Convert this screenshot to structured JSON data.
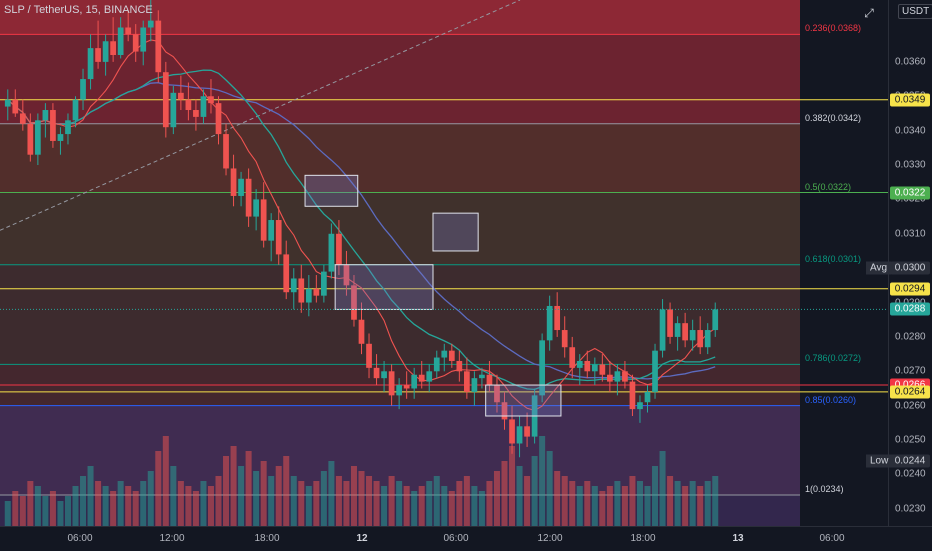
{
  "chart_data": {
    "type": "candlestick",
    "symbol_label": "SLP / TetherUS, 15, BINANCE",
    "currency": "USDT",
    "y_range": [
      0.0225,
      0.0378
    ],
    "price_ticks": [
      "0.0360",
      "0.0350",
      "0.0340",
      "0.0330",
      "0.0320",
      "0.0310",
      "0.0300",
      "0.0290",
      "0.0280",
      "0.0270",
      "0.0260",
      "0.0250",
      "0.0240",
      "0.0230"
    ],
    "time_ticks": [
      "06:00",
      "12:00",
      "18:00",
      "12",
      "06:00",
      "12:00",
      "18:00",
      "13",
      "06:00"
    ],
    "time_ticks_bold": [
      "12",
      "13"
    ],
    "fib_levels": [
      {
        "label": "0.236(0.0368)",
        "value": 0.0368,
        "color": "#f23645"
      },
      {
        "label": "0.382(0.0342)",
        "value": 0.0342,
        "color": "#9598a1"
      },
      {
        "label": "0.5(0.0322)",
        "value": 0.0322,
        "color": "#4caf50"
      },
      {
        "label": "0.618(0.0301)",
        "value": 0.0301,
        "color": "#089981"
      },
      {
        "label": "0.786(0.0272)",
        "value": 0.0272,
        "color": "#089981"
      },
      {
        "label": "0.85(0.0260)",
        "value": 0.026,
        "color": "#2962ff"
      },
      {
        "label": "1(0.0234)",
        "value": 0.0234,
        "color": "#9598a1"
      }
    ],
    "horizontal_lines": [
      {
        "value": 0.0349,
        "color": "#f7e34a",
        "tag": "0.0349"
      },
      {
        "value": 0.0322,
        "color": "#4caf50",
        "tag": "0.0322"
      },
      {
        "value": 0.0294,
        "color": "#f7e34a",
        "tag": "0.0294"
      },
      {
        "value": 0.0266,
        "color": "#f23645",
        "tag": "0.0266"
      },
      {
        "value": 0.0264,
        "color": "#f7e34a",
        "tag": "0.0264"
      }
    ],
    "last_price": {
      "value": 0.0288,
      "tag": "0.0288",
      "color": "#26a69a"
    },
    "avg": {
      "label": "Avg",
      "value": "0.0300"
    },
    "low": {
      "label": "Low",
      "value": "0.0244"
    },
    "candles_ohlc": [
      [
        0.0347,
        0.0352,
        0.0343,
        0.0349
      ],
      [
        0.0349,
        0.0352,
        0.0344,
        0.0345
      ],
      [
        0.0345,
        0.0349,
        0.034,
        0.0342
      ],
      [
        0.0342,
        0.0345,
        0.0331,
        0.0333
      ],
      [
        0.0333,
        0.0345,
        0.033,
        0.0343
      ],
      [
        0.0343,
        0.0348,
        0.0338,
        0.0346
      ],
      [
        0.0346,
        0.0348,
        0.0335,
        0.0337
      ],
      [
        0.0337,
        0.0341,
        0.0333,
        0.0339
      ],
      [
        0.0339,
        0.0345,
        0.0336,
        0.0343
      ],
      [
        0.0343,
        0.035,
        0.0341,
        0.0349
      ],
      [
        0.0349,
        0.0358,
        0.0346,
        0.0355
      ],
      [
        0.0355,
        0.0368,
        0.0352,
        0.0364
      ],
      [
        0.0364,
        0.0372,
        0.0358,
        0.036
      ],
      [
        0.036,
        0.0368,
        0.0356,
        0.0366
      ],
      [
        0.0366,
        0.0373,
        0.036,
        0.0362
      ],
      [
        0.0362,
        0.0373,
        0.0361,
        0.037
      ],
      [
        0.037,
        0.0375,
        0.0366,
        0.0368
      ],
      [
        0.0368,
        0.0371,
        0.036,
        0.0363
      ],
      [
        0.0363,
        0.0372,
        0.0359,
        0.037
      ],
      [
        0.037,
        0.0378,
        0.0366,
        0.0372
      ],
      [
        0.0372,
        0.0375,
        0.0354,
        0.0357
      ],
      [
        0.0357,
        0.036,
        0.0338,
        0.0341
      ],
      [
        0.0341,
        0.0353,
        0.0339,
        0.0351
      ],
      [
        0.0351,
        0.0356,
        0.0346,
        0.0349
      ],
      [
        0.0349,
        0.0354,
        0.0343,
        0.0346
      ],
      [
        0.0346,
        0.0349,
        0.034,
        0.0344
      ],
      [
        0.0344,
        0.0352,
        0.0342,
        0.035
      ],
      [
        0.035,
        0.0355,
        0.0345,
        0.0348
      ],
      [
        0.0348,
        0.035,
        0.0336,
        0.0339
      ],
      [
        0.0339,
        0.0342,
        0.0327,
        0.0329
      ],
      [
        0.0329,
        0.0333,
        0.0318,
        0.0321
      ],
      [
        0.0321,
        0.0328,
        0.0318,
        0.0326
      ],
      [
        0.0326,
        0.0329,
        0.0312,
        0.0315
      ],
      [
        0.0315,
        0.0323,
        0.0311,
        0.032
      ],
      [
        0.032,
        0.0325,
        0.0306,
        0.0308
      ],
      [
        0.0308,
        0.0316,
        0.0302,
        0.0314
      ],
      [
        0.0314,
        0.0318,
        0.0301,
        0.0304
      ],
      [
        0.0304,
        0.0308,
        0.0291,
        0.0293
      ],
      [
        0.0293,
        0.03,
        0.0288,
        0.0297
      ],
      [
        0.0297,
        0.0301,
        0.0287,
        0.029
      ],
      [
        0.029,
        0.0298,
        0.0286,
        0.0294
      ],
      [
        0.0294,
        0.0298,
        0.029,
        0.0292
      ],
      [
        0.0292,
        0.0301,
        0.029,
        0.0299
      ],
      [
        0.0299,
        0.0313,
        0.0297,
        0.031
      ],
      [
        0.031,
        0.0314,
        0.0298,
        0.0301
      ],
      [
        0.0301,
        0.0305,
        0.0292,
        0.0295
      ],
      [
        0.0295,
        0.0298,
        0.0283,
        0.0285
      ],
      [
        0.0285,
        0.029,
        0.0275,
        0.0278
      ],
      [
        0.0278,
        0.0281,
        0.0268,
        0.0271
      ],
      [
        0.0271,
        0.0275,
        0.0266,
        0.0268
      ],
      [
        0.0268,
        0.0273,
        0.0264,
        0.027
      ],
      [
        0.027,
        0.0272,
        0.026,
        0.0263
      ],
      [
        0.0263,
        0.0268,
        0.0259,
        0.0266
      ],
      [
        0.0266,
        0.027,
        0.0262,
        0.0265
      ],
      [
        0.0265,
        0.0271,
        0.0262,
        0.0269
      ],
      [
        0.0269,
        0.0273,
        0.0265,
        0.0267
      ],
      [
        0.0267,
        0.0272,
        0.0264,
        0.027
      ],
      [
        0.027,
        0.0276,
        0.0268,
        0.0274
      ],
      [
        0.0274,
        0.0278,
        0.027,
        0.0276
      ],
      [
        0.0276,
        0.0278,
        0.0271,
        0.0273
      ],
      [
        0.0273,
        0.0276,
        0.0267,
        0.027
      ],
      [
        0.027,
        0.0274,
        0.0262,
        0.0264
      ],
      [
        0.0264,
        0.027,
        0.026,
        0.0268
      ],
      [
        0.0268,
        0.0271,
        0.0265,
        0.0269
      ],
      [
        0.0269,
        0.0273,
        0.0264,
        0.0266
      ],
      [
        0.0266,
        0.0269,
        0.0258,
        0.0261
      ],
      [
        0.0261,
        0.0264,
        0.0253,
        0.0256
      ],
      [
        0.0256,
        0.026,
        0.0246,
        0.0249
      ],
      [
        0.0249,
        0.0257,
        0.0245,
        0.0254
      ],
      [
        0.0254,
        0.0258,
        0.0248,
        0.0251
      ],
      [
        0.0251,
        0.0265,
        0.0249,
        0.0263
      ],
      [
        0.0263,
        0.0281,
        0.0261,
        0.0279
      ],
      [
        0.0279,
        0.0292,
        0.0276,
        0.0289
      ],
      [
        0.0289,
        0.0293,
        0.028,
        0.0282
      ],
      [
        0.0282,
        0.0286,
        0.0274,
        0.0277
      ],
      [
        0.0277,
        0.028,
        0.0268,
        0.0271
      ],
      [
        0.0271,
        0.0275,
        0.0266,
        0.0273
      ],
      [
        0.0273,
        0.0276,
        0.0268,
        0.027
      ],
      [
        0.027,
        0.0274,
        0.0266,
        0.0272
      ],
      [
        0.0272,
        0.0275,
        0.0267,
        0.0269
      ],
      [
        0.0269,
        0.0273,
        0.0264,
        0.0267
      ],
      [
        0.0267,
        0.0272,
        0.0263,
        0.027
      ],
      [
        0.027,
        0.0273,
        0.0265,
        0.0267
      ],
      [
        0.0267,
        0.0269,
        0.0257,
        0.0259
      ],
      [
        0.0259,
        0.0263,
        0.0255,
        0.0261
      ],
      [
        0.0261,
        0.0266,
        0.0258,
        0.0264
      ],
      [
        0.0264,
        0.0278,
        0.0262,
        0.0276
      ],
      [
        0.0276,
        0.0291,
        0.0274,
        0.0288
      ],
      [
        0.0288,
        0.029,
        0.0278,
        0.028
      ],
      [
        0.028,
        0.0286,
        0.0276,
        0.0284
      ],
      [
        0.0284,
        0.0287,
        0.0277,
        0.0279
      ],
      [
        0.0279,
        0.0285,
        0.0276,
        0.0282
      ],
      [
        0.0282,
        0.0286,
        0.0275,
        0.0277
      ],
      [
        0.0277,
        0.0284,
        0.0275,
        0.0282
      ],
      [
        0.0282,
        0.029,
        0.028,
        0.0288
      ]
    ],
    "volume": [
      5,
      7,
      6,
      9,
      8,
      6,
      7,
      5,
      6,
      8,
      10,
      12,
      9,
      8,
      7,
      9,
      8,
      7,
      9,
      11,
      15,
      18,
      12,
      9,
      8,
      7,
      9,
      8,
      10,
      14,
      16,
      12,
      15,
      11,
      13,
      10,
      12,
      14,
      10,
      9,
      8,
      9,
      11,
      13,
      10,
      9,
      12,
      11,
      10,
      9,
      8,
      10,
      9,
      8,
      7,
      8,
      9,
      10,
      8,
      7,
      9,
      10,
      8,
      7,
      9,
      11,
      13,
      16,
      12,
      10,
      14,
      18,
      15,
      11,
      10,
      9,
      8,
      9,
      8,
      7,
      8,
      9,
      8,
      10,
      9,
      8,
      12,
      15,
      10,
      9,
      8,
      9,
      8,
      9,
      10
    ],
    "annotation_boxes": [
      {
        "from": 40,
        "to": 46,
        "top": 0.0327,
        "bottom": 0.0318
      },
      {
        "from": 44,
        "to": 56,
        "top": 0.0301,
        "bottom": 0.0288
      },
      {
        "from": 57,
        "to": 62,
        "top": 0.0316,
        "bottom": 0.0305
      },
      {
        "from": 64,
        "to": 73,
        "top": 0.0266,
        "bottom": 0.0257
      }
    ]
  }
}
